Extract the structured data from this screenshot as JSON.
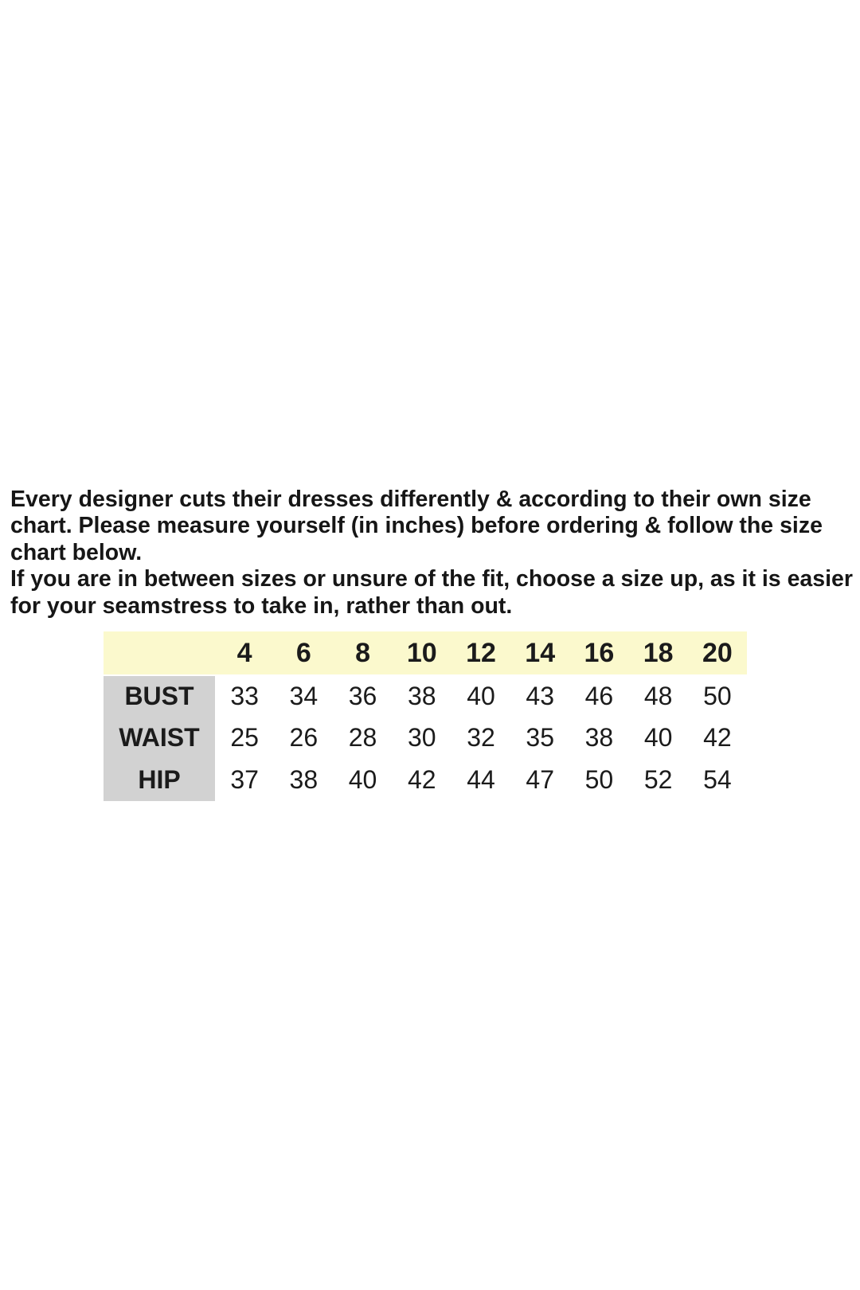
{
  "page": {
    "background": "#ffffff",
    "text_color": "#161616"
  },
  "intro": {
    "paragraphs": [
      {
        "lines": [
          "Every designer cuts their dresses differently & according to their own size",
          "chart. Please measure yourself (in inches) before ordering & follow the size",
          "chart below."
        ]
      },
      {
        "lines": [
          "If you are in between sizes or unsure of the fit, choose a size up, as it is easier",
          "for your seamstress to take in, rather than out."
        ]
      }
    ]
  },
  "size_chart": {
    "header": [
      "4",
      "6",
      "8",
      "10",
      "12",
      "14",
      "16",
      "18",
      "20"
    ],
    "rows": [
      {
        "label": "BUST",
        "values": [
          "33",
          "34",
          "36",
          "38",
          "40",
          "43",
          "46",
          "48",
          "50"
        ]
      },
      {
        "label": "WAIST",
        "values": [
          "25",
          "26",
          "28",
          "30",
          "32",
          "35",
          "38",
          "40",
          "42"
        ]
      },
      {
        "label": "HIP",
        "values": [
          "37",
          "38",
          "40",
          "42",
          "44",
          "47",
          "50",
          "52",
          "54"
        ]
      }
    ],
    "colors": {
      "header_bg": "#fbf9cd",
      "label_bg": "#d2d2d2",
      "cell_bg": "#ffffff"
    }
  }
}
